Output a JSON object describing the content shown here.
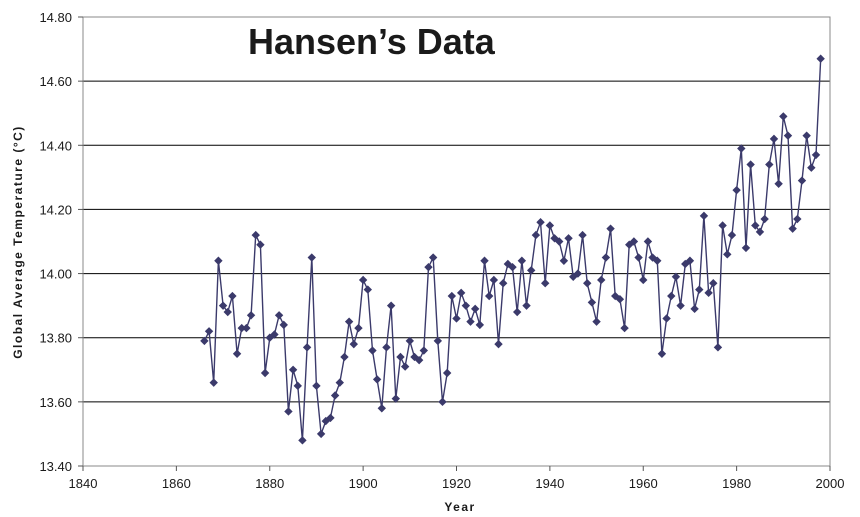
{
  "chart_data": {
    "type": "line",
    "title": "Hansen’s Data",
    "xlabel": "Year",
    "ylabel": "Global  Average  Temperature  (°C)",
    "xlim": [
      1840,
      2000
    ],
    "ylim": [
      13.4,
      14.8
    ],
    "x_ticks": [
      1840,
      1860,
      1880,
      1900,
      1920,
      1940,
      1960,
      1980,
      2000
    ],
    "y_ticks": [
      "13.40",
      "13.60",
      "13.80",
      "14.00",
      "14.20",
      "14.40",
      "14.60",
      "14.80"
    ],
    "grid": "horizontal",
    "legend": "none",
    "colors": {
      "series": "#3b3a6b",
      "grid": "#000000",
      "frame": "#888888"
    },
    "series": [
      {
        "x": [
          1866,
          1867,
          1868,
          1869,
          1870,
          1871,
          1872,
          1873,
          1874,
          1875,
          1876,
          1877,
          1878,
          1879,
          1880,
          1881,
          1882,
          1883,
          1884,
          1885,
          1886,
          1887,
          1888,
          1889,
          1890,
          1891,
          1892,
          1893,
          1894,
          1895,
          1896,
          1897,
          1898,
          1899,
          1900,
          1901,
          1902,
          1903,
          1904,
          1905,
          1906,
          1907,
          1908,
          1909,
          1910,
          1911,
          1912,
          1913,
          1914,
          1915,
          1916,
          1917,
          1918,
          1919,
          1920,
          1921,
          1922,
          1923,
          1924,
          1925,
          1926,
          1927,
          1928,
          1929,
          1930,
          1931,
          1932,
          1933,
          1934,
          1935,
          1936,
          1937,
          1938,
          1939,
          1940,
          1941,
          1942,
          1943,
          1944,
          1945,
          1946,
          1947,
          1948,
          1949,
          1950,
          1951,
          1952,
          1953,
          1954,
          1955,
          1956,
          1957,
          1958,
          1959,
          1960,
          1961,
          1962,
          1963,
          1964,
          1965,
          1966,
          1967,
          1968,
          1969,
          1970,
          1971,
          1972,
          1973,
          1974,
          1975,
          1976,
          1977,
          1978,
          1979,
          1980,
          1981,
          1982,
          1983,
          1984,
          1985,
          1986,
          1987,
          1988,
          1989,
          1990,
          1991,
          1992,
          1993,
          1994,
          1995,
          1996,
          1997,
          1998
        ],
        "y": [
          13.79,
          13.82,
          13.66,
          14.04,
          13.9,
          13.88,
          13.93,
          13.75,
          13.83,
          13.83,
          13.87,
          14.12,
          14.09,
          13.69,
          13.8,
          13.81,
          13.87,
          13.84,
          13.57,
          13.7,
          13.65,
          13.48,
          13.77,
          14.05,
          13.65,
          13.5,
          13.54,
          13.55,
          13.62,
          13.66,
          13.74,
          13.85,
          13.78,
          13.83,
          13.98,
          13.95,
          13.76,
          13.67,
          13.58,
          13.77,
          13.9,
          13.61,
          13.74,
          13.71,
          13.79,
          13.74,
          13.73,
          13.76,
          14.02,
          14.05,
          13.79,
          13.6,
          13.69,
          13.93,
          13.86,
          13.94,
          13.9,
          13.85,
          13.89,
          13.84,
          14.04,
          13.93,
          13.98,
          13.78,
          13.97,
          14.03,
          14.02,
          13.88,
          14.04,
          13.9,
          14.01,
          14.12,
          14.16,
          13.97,
          14.15,
          14.11,
          14.1,
          14.04,
          14.11,
          13.99,
          14.0,
          14.12,
          13.97,
          13.91,
          13.85,
          13.98,
          14.05,
          14.14,
          13.93,
          13.92,
          13.83,
          14.09,
          14.1,
          14.05,
          13.98,
          14.1,
          14.05,
          14.04,
          13.75,
          13.86,
          13.93,
          13.99,
          13.9,
          14.03,
          14.04,
          13.89,
          13.95,
          14.18,
          13.94,
          13.97,
          13.77,
          14.15,
          14.06,
          14.12,
          14.26,
          14.39,
          14.08,
          14.34,
          14.15,
          14.13,
          14.17,
          14.34,
          14.42,
          14.28,
          14.49,
          14.43,
          14.14,
          14.17,
          14.29,
          14.43,
          14.33,
          14.37,
          14.67
        ]
      }
    ]
  }
}
